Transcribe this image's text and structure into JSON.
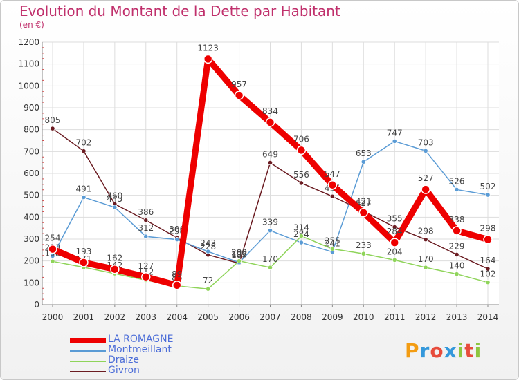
{
  "title": "Evolution du Montant de la Dette par Habitant",
  "subtitle": "(en €)",
  "logo": {
    "text": "Proxiti",
    "colors": [
      "#f39c12",
      "#3498db",
      "#e74c3c",
      "#3498db",
      "#8dc63f",
      "#e74c3c",
      "#8dc63f"
    ]
  },
  "chart_data": {
    "type": "line",
    "categories": [
      "2000",
      "2001",
      "2002",
      "2003",
      "2004",
      "2005",
      "2006",
      "2007",
      "2008",
      "2009",
      "2010",
      "2011",
      "2012",
      "2013",
      "2014"
    ],
    "ylim": [
      0,
      1200
    ],
    "yticks": [
      0,
      100,
      200,
      300,
      400,
      500,
      600,
      700,
      800,
      900,
      1000,
      1100,
      1200
    ],
    "grid": true,
    "legend_position": "bottom-left",
    "series": [
      {
        "name": "Givron",
        "color": "#6b1c22",
        "width": 1.5,
        "values": [
          805,
          702,
          460,
          386,
          306,
          228,
          189,
          649,
          556,
          495,
          427,
          355,
          298,
          229,
          164
        ]
      },
      {
        "name": "Montmeillant",
        "color": "#5a9bd5",
        "width": 1.5,
        "values": [
          223,
          491,
          445,
          312,
          298,
          243,
          193,
          339,
          284,
          241,
          653,
          747,
          703,
          526,
          502
        ]
      },
      {
        "name": "Draize",
        "color": "#8fd45a",
        "width": 1.5,
        "values": [
          198,
          171,
          142,
          112,
          86,
          72,
          200,
          170,
          314,
          255,
          233,
          204,
          170,
          140,
          102
        ]
      },
      {
        "name": "LA ROMAGNE",
        "color": "#ee0000",
        "width": 9,
        "values": [
          254,
          193,
          162,
          127,
          89,
          1123,
          957,
          834,
          706,
          547,
          421,
          284,
          527,
          338,
          298
        ]
      }
    ],
    "legend_order": [
      "LA ROMAGNE",
      "Montmeillant",
      "Draize",
      "Givron"
    ]
  }
}
